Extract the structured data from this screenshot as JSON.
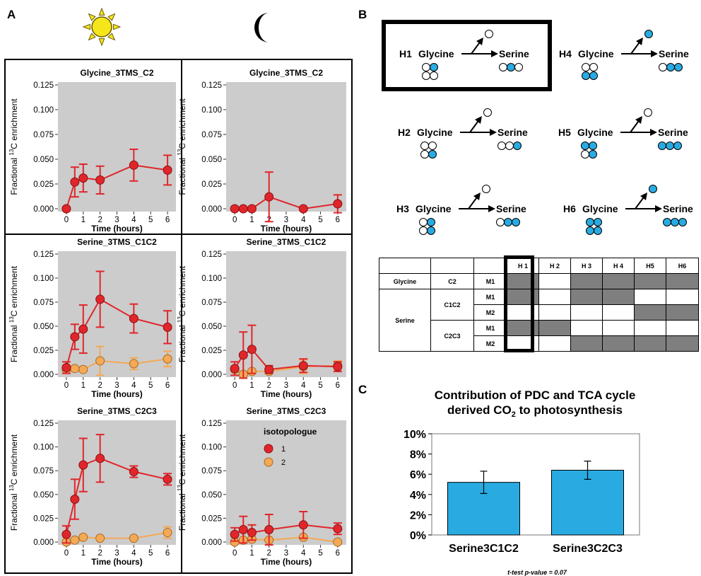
{
  "panels": {
    "a": "A",
    "b": "B",
    "c": "C"
  },
  "icons": {
    "sun": "sun-icon",
    "moon": "moon-icon"
  },
  "colors": {
    "iso1": "#e0262b",
    "iso1_dark": "#8b1012",
    "iso2": "#f4a957",
    "iso2_dark": "#a86a1e",
    "plot_bg": "#cccccc",
    "bar": "#29abe2",
    "circle_blue": "#29abe2"
  },
  "legend": {
    "title": "isotopologue",
    "items": [
      {
        "label": "1",
        "color": "#e0262b"
      },
      {
        "label": "2",
        "color": "#f4a957"
      }
    ]
  },
  "chart_data": [
    {
      "type": "line",
      "id": "day_glycine_c2",
      "title": "Glycine_3TMS_C2",
      "xlabel": "Time (hours)",
      "ylabel": "Fractional 13C enrichment",
      "x": [
        0,
        0.5,
        1,
        2,
        4,
        6
      ],
      "ylim": [
        0,
        0.125
      ],
      "xticks": [
        "0",
        "1",
        "2",
        "3",
        "4",
        "5",
        "6"
      ],
      "yticks": [
        "0.000",
        "0.025",
        "0.050",
        "0.075",
        "0.100",
        "0.125"
      ],
      "series": [
        {
          "name": "1",
          "values": [
            0.0,
            0.027,
            0.031,
            0.029,
            0.044,
            0.039
          ],
          "errors": [
            0.0,
            0.015,
            0.014,
            0.014,
            0.016,
            0.015
          ]
        }
      ]
    },
    {
      "type": "line",
      "id": "night_glycine_c2",
      "title": "Glycine_3TMS_C2",
      "xlabel": "Time (hours)",
      "ylabel": "Fractional 13C enrichment",
      "x": [
        0,
        0.5,
        1,
        2,
        4,
        6
      ],
      "ylim": [
        0,
        0.125
      ],
      "xticks": [
        "0",
        "1",
        "2",
        "3",
        "4",
        "5",
        "6"
      ],
      "yticks": [
        "0.000",
        "0.025",
        "0.050",
        "0.075",
        "0.100",
        "0.125"
      ],
      "series": [
        {
          "name": "1",
          "values": [
            0.0,
            0.0,
            0.0,
            0.012,
            0.0,
            0.005
          ],
          "errors": [
            0.0,
            0.0,
            0.0,
            0.025,
            0.0,
            0.009
          ]
        }
      ]
    },
    {
      "type": "line",
      "id": "day_serine_c1c2",
      "title": "Serine_3TMS_C1C2",
      "xlabel": "Time (hours)",
      "ylabel": "Fractional 13C enrichment",
      "x": [
        0,
        0.5,
        1,
        2,
        4,
        6
      ],
      "ylim": [
        0,
        0.125
      ],
      "xticks": [
        "0",
        "1",
        "2",
        "3",
        "4",
        "5",
        "6"
      ],
      "yticks": [
        "0.000",
        "0.025",
        "0.050",
        "0.075",
        "0.100",
        "0.125"
      ],
      "series": [
        {
          "name": "1",
          "values": [
            0.007,
            0.039,
            0.047,
            0.078,
            0.058,
            0.049
          ],
          "errors": [
            0.006,
            0.013,
            0.025,
            0.029,
            0.015,
            0.017
          ]
        },
        {
          "name": "2",
          "values": [
            0.005,
            0.006,
            0.005,
            0.014,
            0.011,
            0.016
          ],
          "errors": [
            0.0,
            0.0,
            0.0,
            0.015,
            0.006,
            0.008
          ]
        }
      ]
    },
    {
      "type": "line",
      "id": "night_serine_c1c2",
      "title": "Serine_3TMS_C1C2",
      "xlabel": "Time (hours)",
      "ylabel": "Fractional 13C enrichment",
      "x": [
        0,
        0.5,
        1,
        2,
        4,
        6
      ],
      "ylim": [
        0,
        0.125
      ],
      "xticks": [
        "0",
        "1",
        "2",
        "3",
        "4",
        "5",
        "6"
      ],
      "yticks": [
        "0.000",
        "0.025",
        "0.050",
        "0.075",
        "0.100",
        "0.125"
      ],
      "series": [
        {
          "name": "1",
          "values": [
            0.006,
            0.02,
            0.026,
            0.005,
            0.009,
            0.008
          ],
          "errors": [
            0.007,
            0.024,
            0.025,
            0.004,
            0.007,
            0.005
          ]
        },
        {
          "name": "2",
          "values": [
            0.005,
            0.0,
            0.003,
            0.003,
            0.008,
            0.009
          ],
          "errors": [
            0.0,
            0.0,
            0.0,
            0.0,
            0.007,
            0.005
          ]
        }
      ]
    },
    {
      "type": "line",
      "id": "day_serine_c2c3",
      "title": "Serine_3TMS_C2C3",
      "xlabel": "Time (hours)",
      "ylabel": "Fractional 13C enrichment",
      "x": [
        0,
        0.5,
        1,
        2,
        4,
        6
      ],
      "ylim": [
        0,
        0.125
      ],
      "xticks": [
        "0",
        "1",
        "2",
        "3",
        "4",
        "5",
        "6"
      ],
      "yticks": [
        "0.000",
        "0.025",
        "0.050",
        "0.075",
        "0.100",
        "0.125"
      ],
      "series": [
        {
          "name": "1",
          "values": [
            0.008,
            0.045,
            0.081,
            0.088,
            0.074,
            0.066
          ],
          "errors": [
            0.009,
            0.021,
            0.028,
            0.025,
            0.006,
            0.006
          ]
        },
        {
          "name": "2",
          "values": [
            0.0,
            0.002,
            0.005,
            0.004,
            0.004,
            0.01
          ],
          "errors": [
            0.0,
            0.0,
            0.0,
            0.0,
            0.0,
            0.006
          ]
        }
      ]
    },
    {
      "type": "line",
      "id": "night_serine_c2c3",
      "title": "Serine_3TMS_C2C3",
      "xlabel": "Time (hours)",
      "ylabel": "Fractional 13C enrichment",
      "x": [
        0,
        0.5,
        1,
        2,
        4,
        6
      ],
      "ylim": [
        0,
        0.125
      ],
      "xticks": [
        "0",
        "1",
        "2",
        "3",
        "4",
        "5",
        "6"
      ],
      "yticks": [
        "0.000",
        "0.025",
        "0.050",
        "0.075",
        "0.100",
        "0.125"
      ],
      "series": [
        {
          "name": "1",
          "values": [
            0.008,
            0.013,
            0.01,
            0.013,
            0.018,
            0.014
          ],
          "errors": [
            0.007,
            0.014,
            0.008,
            0.016,
            0.014,
            0.006
          ]
        },
        {
          "name": "2",
          "values": [
            0.0,
            0.002,
            0.003,
            0.002,
            0.005,
            0.0
          ],
          "errors": [
            0.0,
            0.0,
            0.0,
            0.0,
            0.0,
            0.0
          ]
        }
      ]
    },
    {
      "type": "bar",
      "id": "contribution",
      "title": "Contribution of PDC and TCA cycle derived CO2 to photosynthesis",
      "title_line1": "Contribution of PDC and TCA cycle",
      "title_line2_pre": "derived CO",
      "title_line2_sub": "2",
      "title_line2_post": " to photosynthesis",
      "categories": [
        "Serine3C1C2",
        "Serine3C2C3"
      ],
      "values": [
        5.2,
        6.4
      ],
      "errors": [
        1.1,
        0.9
      ],
      "ylim": [
        0,
        10
      ],
      "yticks": [
        "0%",
        "2%",
        "4%",
        "6%",
        "8%",
        "10%"
      ],
      "note": "t-test p-value = 0.07"
    }
  ],
  "hypotheses": [
    {
      "id": "H1",
      "donor": "Glycine",
      "product": "Serine",
      "released": "white",
      "glycine": [
        "white",
        "blue",
        "white",
        "white"
      ],
      "serine": [
        "white",
        "blue",
        "white"
      ]
    },
    {
      "id": "H4",
      "donor": "Glycine",
      "product": "Serine",
      "released": "blue",
      "glycine": [
        "white",
        "white",
        "blue",
        "blue"
      ],
      "serine": [
        "white",
        "blue",
        "blue"
      ]
    },
    {
      "id": "H2",
      "donor": "Glycine",
      "product": "Serine",
      "released": "white",
      "glycine": [
        "white",
        "white",
        "white",
        "blue"
      ],
      "serine": [
        "white",
        "white",
        "blue"
      ]
    },
    {
      "id": "H5",
      "donor": "Glycine",
      "product": "Serine",
      "released": "white",
      "glycine": [
        "blue",
        "blue",
        "white",
        "blue"
      ],
      "serine": [
        "blue",
        "blue",
        "blue"
      ]
    },
    {
      "id": "H3",
      "donor": "Glycine",
      "product": "Serine",
      "released": "white",
      "glycine": [
        "white",
        "blue",
        "white",
        "blue"
      ],
      "serine": [
        "white",
        "blue",
        "blue"
      ]
    },
    {
      "id": "H6",
      "donor": "Glycine",
      "product": "Serine",
      "released": "blue",
      "glycine": [
        "blue",
        "blue",
        "blue",
        "blue"
      ],
      "serine": [
        "blue",
        "blue",
        "blue"
      ]
    }
  ],
  "hypothesis_table": {
    "headers": [
      "H 1",
      "H 2",
      "H 3",
      "H 4",
      "H5",
      "H6"
    ],
    "glycine": "Glycine",
    "serine": "Serine",
    "rows": [
      {
        "fragment": "C2",
        "mass": "M1",
        "cells": [
          1,
          0,
          1,
          1,
          1,
          1
        ]
      },
      {
        "fragment": "C1C2",
        "mass": "M1",
        "cells": [
          1,
          0,
          1,
          1,
          0,
          0
        ]
      },
      {
        "fragment": "",
        "mass": "M2",
        "cells": [
          0,
          0,
          0,
          0,
          1,
          1
        ]
      },
      {
        "fragment": "C2C3",
        "mass": "M1",
        "cells": [
          1,
          1,
          0,
          0,
          0,
          0
        ]
      },
      {
        "fragment": "",
        "mass": "M2",
        "cells": [
          0,
          0,
          1,
          1,
          1,
          1
        ]
      }
    ]
  }
}
